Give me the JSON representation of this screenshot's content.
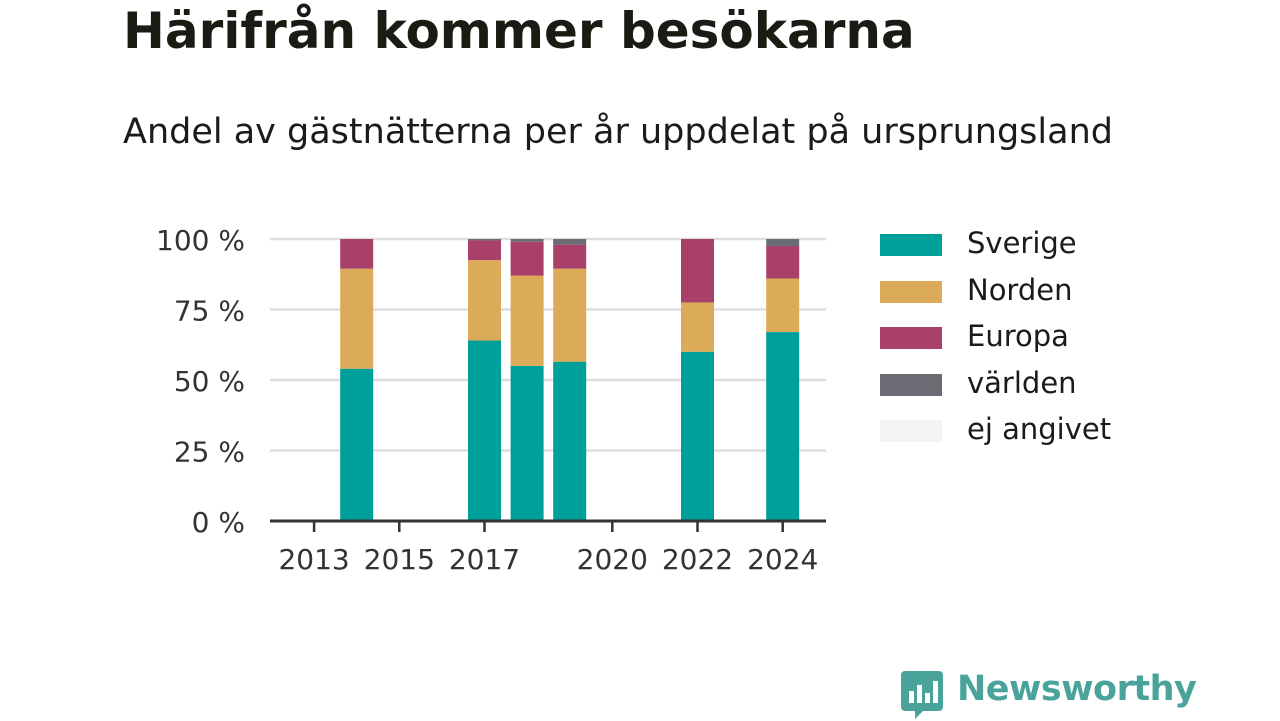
{
  "chart_data": {
    "type": "bar",
    "stacked": true,
    "title": "Härifrån kommer besökarna",
    "subtitle": "Andel av gästnätterna per år uppdelat på ursprungsland",
    "xlabel": "",
    "ylabel": "",
    "ylim": [
      0,
      100
    ],
    "yticks": [
      "0 %",
      "25 %",
      "50 %",
      "75 %",
      "100 %"
    ],
    "ytick_values": [
      0,
      25,
      50,
      75,
      100
    ],
    "xlim": [
      2012,
      2025
    ],
    "xticks": [
      "2013",
      "2015",
      "2017",
      "2020",
      "2022",
      "2024"
    ],
    "xtick_values": [
      2013,
      2015,
      2017,
      2020,
      2022,
      2024
    ],
    "grid": true,
    "legend_position": "right",
    "years": [
      2014,
      2017,
      2018,
      2019,
      2022,
      2024
    ],
    "series": [
      {
        "name": "Sverige",
        "color": "#00a09a",
        "values": [
          54,
          64,
          55,
          56.5,
          60,
          67
        ]
      },
      {
        "name": "Norden",
        "color": "#dcab5a",
        "values": [
          35.5,
          28.5,
          32,
          33,
          17.5,
          19
        ]
      },
      {
        "name": "Europa",
        "color": "#a8406a",
        "values": [
          10.5,
          7,
          12,
          8.5,
          22.5,
          11.5
        ]
      },
      {
        "name": "världen",
        "color": "#6b6b74",
        "values": [
          0,
          0.5,
          1,
          2,
          0,
          2.5
        ]
      },
      {
        "name": "ej angivet",
        "color": "#f4f4f2",
        "values": [
          0,
          0,
          0,
          0,
          0,
          0
        ]
      }
    ]
  },
  "brand": {
    "name": "Newsworthy",
    "icon": "newsworthy-logo-icon"
  }
}
